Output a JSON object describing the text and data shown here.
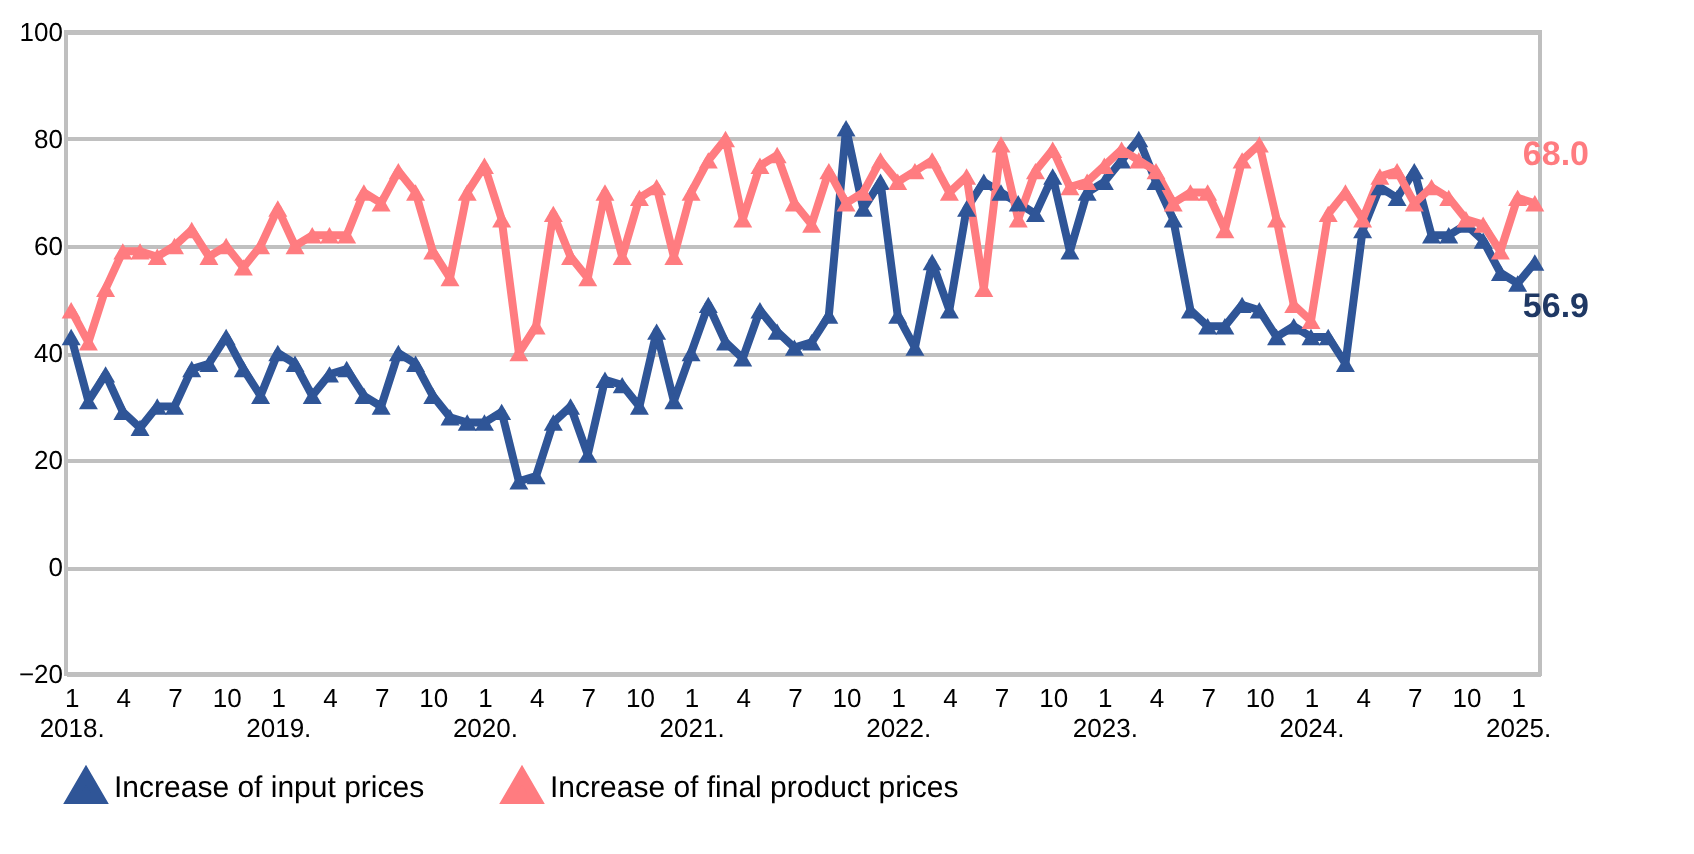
{
  "chart_data": {
    "type": "line",
    "categories": [
      "1\n2018.",
      null,
      null,
      "4",
      null,
      null,
      "7",
      null,
      null,
      "10",
      null,
      null,
      "1\n2019.",
      null,
      null,
      "4",
      null,
      null,
      "7",
      null,
      null,
      "10",
      null,
      null,
      "1\n2020.",
      null,
      null,
      "4",
      null,
      null,
      "7",
      null,
      null,
      "10",
      null,
      null,
      "1\n2021.",
      null,
      null,
      "4",
      null,
      null,
      "7",
      null,
      null,
      "10",
      null,
      null,
      "1\n2022.",
      null,
      null,
      "4",
      null,
      null,
      "7",
      null,
      null,
      "10",
      null,
      null,
      "1\n2023.",
      null,
      null,
      "4",
      null,
      null,
      "7",
      null,
      null,
      "10",
      null,
      null,
      "1\n2024.",
      null,
      null,
      "4",
      null,
      null,
      "7",
      null,
      null,
      "10",
      null,
      null,
      "1\n2025.",
      null
    ],
    "series": [
      {
        "name": "Increase of input prices",
        "color": "#2f5597",
        "values": [
          43,
          31,
          36,
          29,
          26,
          30,
          30,
          37,
          38,
          43,
          37,
          32,
          40,
          38,
          32,
          36,
          37,
          32,
          30,
          40,
          38,
          32,
          28,
          27,
          27,
          29,
          16,
          17,
          27,
          30,
          21,
          35,
          34,
          30,
          44,
          31,
          40,
          49,
          42,
          39,
          48,
          44,
          41,
          42,
          47,
          82,
          67,
          72,
          47,
          41,
          57,
          48,
          67,
          72,
          70,
          68,
          66,
          73,
          59,
          70,
          72,
          76,
          80,
          72,
          65,
          48,
          45,
          45,
          49,
          48,
          43,
          45,
          43,
          43,
          38,
          63,
          71,
          69,
          74,
          62,
          62,
          64,
          61,
          55,
          53,
          56.9
        ]
      },
      {
        "name": "Increase of final product prices",
        "color": "#ff7c80",
        "values": [
          48,
          42,
          52,
          59,
          59,
          58,
          60,
          63,
          58,
          60,
          56,
          60,
          67,
          60,
          62,
          62,
          62,
          70,
          68,
          74,
          70,
          59,
          54,
          70,
          75,
          65,
          40,
          45,
          66,
          58,
          54,
          70,
          58,
          69,
          71,
          58,
          70,
          76,
          80,
          65,
          75,
          77,
          68,
          64,
          74,
          68,
          70,
          76,
          72,
          74,
          76,
          70,
          73,
          52,
          79,
          65,
          74,
          78,
          71,
          72,
          75,
          78,
          76,
          74,
          68,
          70,
          70,
          63,
          76,
          79,
          65,
          49,
          46,
          66,
          70,
          65,
          73,
          74,
          68,
          71,
          69,
          65,
          64,
          59,
          69,
          68.0
        ]
      }
    ],
    "annotations": [
      "56.9",
      "68.0"
    ],
    "ylim": [
      -20,
      100
    ],
    "yticks": [
      -20,
      0,
      20,
      40,
      60,
      80,
      100
    ],
    "grid": "y",
    "legend": "bottom",
    "marker": "triangle",
    "line_style": "solid"
  }
}
